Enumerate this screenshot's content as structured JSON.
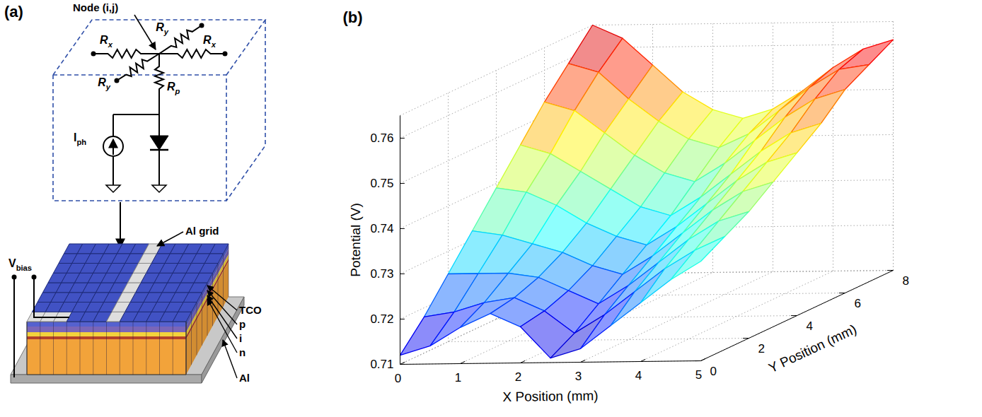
{
  "diagram": {
    "panel_label": "(a)",
    "node_label": "Node (i,j)",
    "resistors": [
      {
        "base": "R",
        "sub": "x"
      },
      {
        "base": "R",
        "sub": "x"
      },
      {
        "base": "R",
        "sub": "y"
      },
      {
        "base": "R",
        "sub": "y"
      },
      {
        "base": "R",
        "sub": "p"
      }
    ],
    "current_source": {
      "base": "I",
      "sub": "ph"
    },
    "bias": {
      "base": "V",
      "sub": "bias"
    },
    "grid_label": "Al grid",
    "layers": [
      "TCO",
      "p",
      "i",
      "n",
      "Al"
    ]
  },
  "chart_data": {
    "type": "surface",
    "panel_label": "(b)",
    "xlabel": "X Position (mm)",
    "ylabel": "Y Position (mm)",
    "zlabel": "Potential (V)",
    "x": [
      0,
      0.5,
      1,
      1.5,
      2,
      2.5,
      3,
      3.5,
      4,
      4.5,
      5
    ],
    "y": [
      0,
      1,
      2,
      3,
      4,
      5,
      6,
      7,
      8
    ],
    "values": [
      [
        0.712,
        0.714,
        0.718,
        0.721,
        0.718,
        0.711,
        0.713,
        0.718,
        0.723,
        0.728,
        0.732
      ],
      [
        0.718,
        0.719,
        0.721,
        0.722,
        0.719,
        0.714,
        0.718,
        0.723,
        0.728,
        0.732,
        0.735
      ],
      [
        0.725,
        0.725,
        0.725,
        0.724,
        0.721,
        0.718,
        0.722,
        0.727,
        0.732,
        0.736,
        0.738
      ],
      [
        0.732,
        0.731,
        0.729,
        0.727,
        0.724,
        0.722,
        0.726,
        0.731,
        0.736,
        0.74,
        0.742
      ],
      [
        0.739,
        0.738,
        0.735,
        0.731,
        0.728,
        0.726,
        0.73,
        0.735,
        0.74,
        0.744,
        0.746
      ],
      [
        0.746,
        0.744,
        0.74,
        0.736,
        0.732,
        0.73,
        0.734,
        0.739,
        0.744,
        0.748,
        0.75
      ],
      [
        0.753,
        0.751,
        0.746,
        0.741,
        0.737,
        0.735,
        0.739,
        0.744,
        0.749,
        0.753,
        0.755
      ],
      [
        0.759,
        0.757,
        0.751,
        0.746,
        0.742,
        0.74,
        0.743,
        0.748,
        0.753,
        0.757,
        0.758
      ],
      [
        0.765,
        0.762,
        0.756,
        0.75,
        0.746,
        0.744,
        0.746,
        0.75,
        0.755,
        0.759,
        0.761
      ]
    ],
    "xlim": [
      0,
      5
    ],
    "ylim": [
      0,
      8
    ],
    "zlim": [
      0.71,
      0.765
    ],
    "xticks": [
      0,
      1,
      2,
      3,
      4,
      5
    ],
    "yticks": [
      0,
      2,
      4,
      6,
      8
    ],
    "zticks": [
      0.71,
      0.72,
      0.73,
      0.74,
      0.75,
      0.76
    ],
    "grid": true
  }
}
